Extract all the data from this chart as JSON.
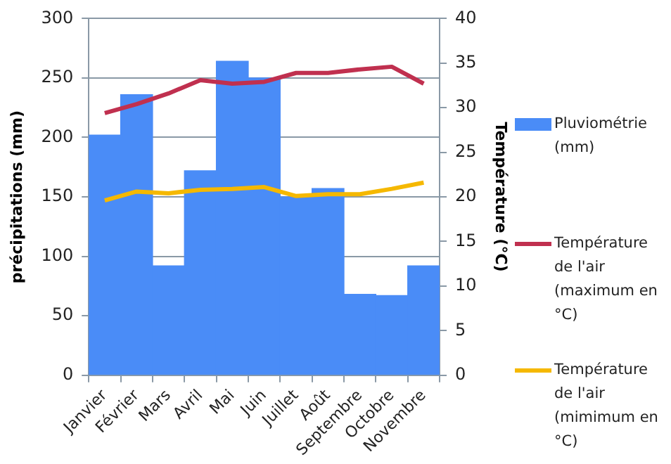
{
  "chart_data": {
    "type": "bar",
    "categories": [
      "Janvier",
      "Février",
      "Mars",
      "Avril",
      "Mai",
      "Juin",
      "Juillet",
      "Août",
      "Septembre",
      "Octobre",
      "Novembre"
    ],
    "ylabel": "précipitations (mm)",
    "y2label": "Température (°C)",
    "ylim": [
      0,
      300
    ],
    "yticks": [
      0,
      50,
      100,
      150,
      200,
      250,
      300
    ],
    "y2lim": [
      0,
      40
    ],
    "y2ticks": [
      0,
      5,
      10,
      15,
      20,
      25,
      30,
      35,
      40
    ],
    "grid": "y",
    "legend": "right",
    "marker": "none",
    "series": [
      {
        "name": "Pluviométrie (mm)",
        "color": "#4a8cf7",
        "values": [
          202,
          236,
          92,
          172,
          264,
          250,
          150,
          157,
          68,
          67,
          92
        ]
      },
      {
        "name": "Température de l'air (maximum en °C)",
        "type": "line",
        "axis": "y2",
        "color": "#c0304f",
        "values": [
          29.4,
          30.4,
          31.6,
          33.1,
          32.7,
          32.9,
          33.9,
          33.9,
          34.3,
          34.6,
          32.7
        ]
      },
      {
        "name": "Température de l'air (mimimum en °C)",
        "type": "line",
        "axis": "y2",
        "color": "#f5b800",
        "values": [
          19.6,
          20.6,
          20.4,
          20.8,
          20.9,
          21.1,
          20.1,
          20.3,
          20.3,
          20.9,
          21.6
        ]
      }
    ]
  }
}
